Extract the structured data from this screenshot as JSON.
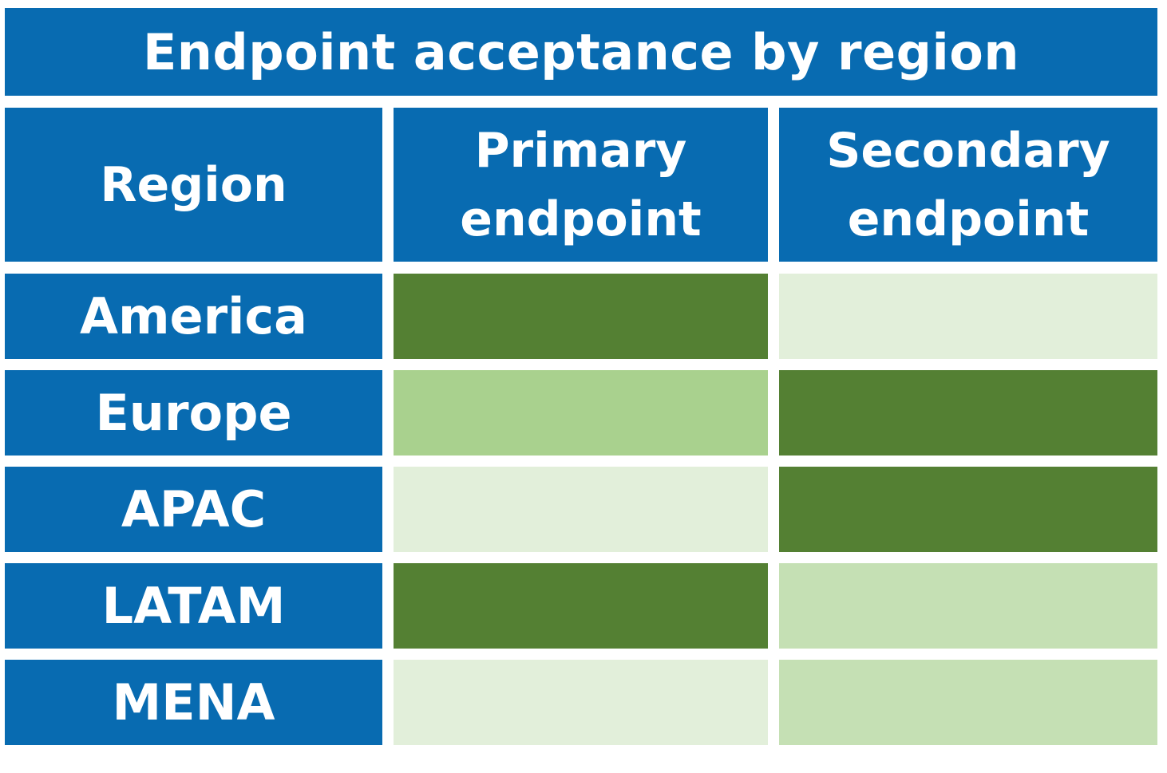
{
  "title": "Endpoint acceptance by region",
  "headers": {
    "region": "Region",
    "primary": [
      "Primary",
      "endpoint"
    ],
    "secondary": [
      "Secondary",
      "endpoint"
    ]
  },
  "colors": {
    "header_blue": "#086bb1",
    "level_high": "#548033",
    "level_medium": "#a9d18e",
    "level_light": "#c5e0b4",
    "level_low": "#e2efda"
  },
  "rows": [
    {
      "region": "America",
      "primary": "high",
      "secondary": "low"
    },
    {
      "region": "Europe",
      "primary": "medium",
      "secondary": "high"
    },
    {
      "region": "APAC",
      "primary": "low",
      "secondary": "high"
    },
    {
      "region": "LATAM",
      "primary": "high",
      "secondary": "light"
    },
    {
      "region": "MENA",
      "primary": "low",
      "secondary": "light"
    }
  ]
}
